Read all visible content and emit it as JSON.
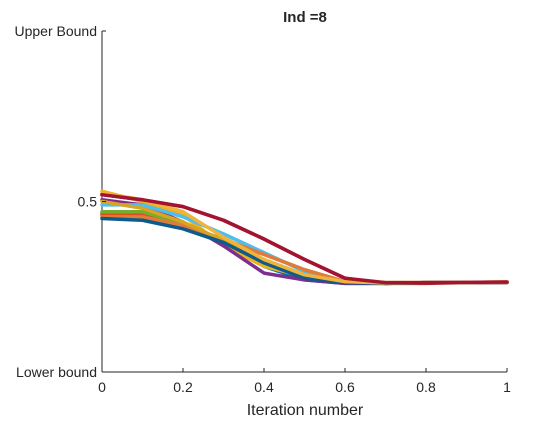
{
  "chart_data": {
    "type": "line",
    "title": "Ind =8",
    "xlabel": "Iteration number",
    "ylabel": "",
    "xlim": [
      0,
      1
    ],
    "ylim": [
      0,
      1
    ],
    "grid": false,
    "x_ticks": [
      {
        "value": 0,
        "label": "0"
      },
      {
        "value": 0.2,
        "label": "0.2"
      },
      {
        "value": 0.4,
        "label": "0.4"
      },
      {
        "value": 0.6,
        "label": "0.6"
      },
      {
        "value": 0.8,
        "label": "0.8"
      },
      {
        "value": 1,
        "label": "1"
      }
    ],
    "y_ticks": [
      {
        "value": 0,
        "label": "Lower bound"
      },
      {
        "value": 0.5,
        "label": "0.5"
      },
      {
        "value": 1,
        "label": "Upper Bound"
      }
    ],
    "x": [
      0,
      0.1,
      0.2,
      0.3,
      0.4,
      0.5,
      0.6,
      0.7,
      0.8,
      0.9,
      1.0
    ],
    "series": [
      {
        "color": "#0072BD",
        "values": [
          0.465,
          0.455,
          0.425,
          0.385,
          0.31,
          0.27,
          0.26,
          0.26,
          0.262,
          0.263,
          0.263
        ]
      },
      {
        "color": "#D95319",
        "values": [
          0.46,
          0.465,
          0.43,
          0.385,
          0.345,
          0.3,
          0.265,
          0.26,
          0.262,
          0.262,
          0.263
        ]
      },
      {
        "color": "#EDB120",
        "values": [
          0.53,
          0.5,
          0.46,
          0.37,
          0.31,
          0.28,
          0.265,
          0.262,
          0.262,
          0.263,
          0.263
        ]
      },
      {
        "color": "#7E2F8E",
        "values": [
          0.505,
          0.49,
          0.44,
          0.37,
          0.29,
          0.27,
          0.26,
          0.26,
          0.262,
          0.263,
          0.263
        ]
      },
      {
        "color": "#77AC30",
        "values": [
          0.47,
          0.47,
          0.435,
          0.38,
          0.33,
          0.285,
          0.265,
          0.26,
          0.262,
          0.263,
          0.263
        ]
      },
      {
        "color": "#4DBEEE",
        "values": [
          0.49,
          0.49,
          0.455,
          0.405,
          0.35,
          0.295,
          0.265,
          0.26,
          0.262,
          0.263,
          0.263
        ]
      },
      {
        "color": "#A2142F",
        "values": [
          0.52,
          0.505,
          0.485,
          0.445,
          0.39,
          0.33,
          0.275,
          0.26,
          0.26,
          0.262,
          0.263
        ]
      },
      {
        "color": "#E07B39",
        "values": [
          0.455,
          0.455,
          0.43,
          0.39,
          0.345,
          0.3,
          0.265,
          0.26,
          0.262,
          0.263,
          0.263
        ]
      },
      {
        "color": "#D9A520",
        "values": [
          0.5,
          0.48,
          0.44,
          0.385,
          0.32,
          0.28,
          0.265,
          0.262,
          0.262,
          0.263,
          0.264
        ]
      },
      {
        "color": "#0E5A8A",
        "values": [
          0.45,
          0.445,
          0.42,
          0.38,
          0.32,
          0.275,
          0.262,
          0.26,
          0.262,
          0.263,
          0.263
        ]
      },
      {
        "color": "#F0B43C",
        "values": [
          0.525,
          0.505,
          0.47,
          0.395,
          0.33,
          0.285,
          0.265,
          0.261,
          0.262,
          0.263,
          0.264
        ]
      },
      {
        "color": "#A2142F",
        "values": [
          0.52,
          0.505,
          0.485,
          0.445,
          0.39,
          0.33,
          0.275,
          0.262,
          0.262,
          0.263,
          0.264
        ]
      }
    ]
  }
}
